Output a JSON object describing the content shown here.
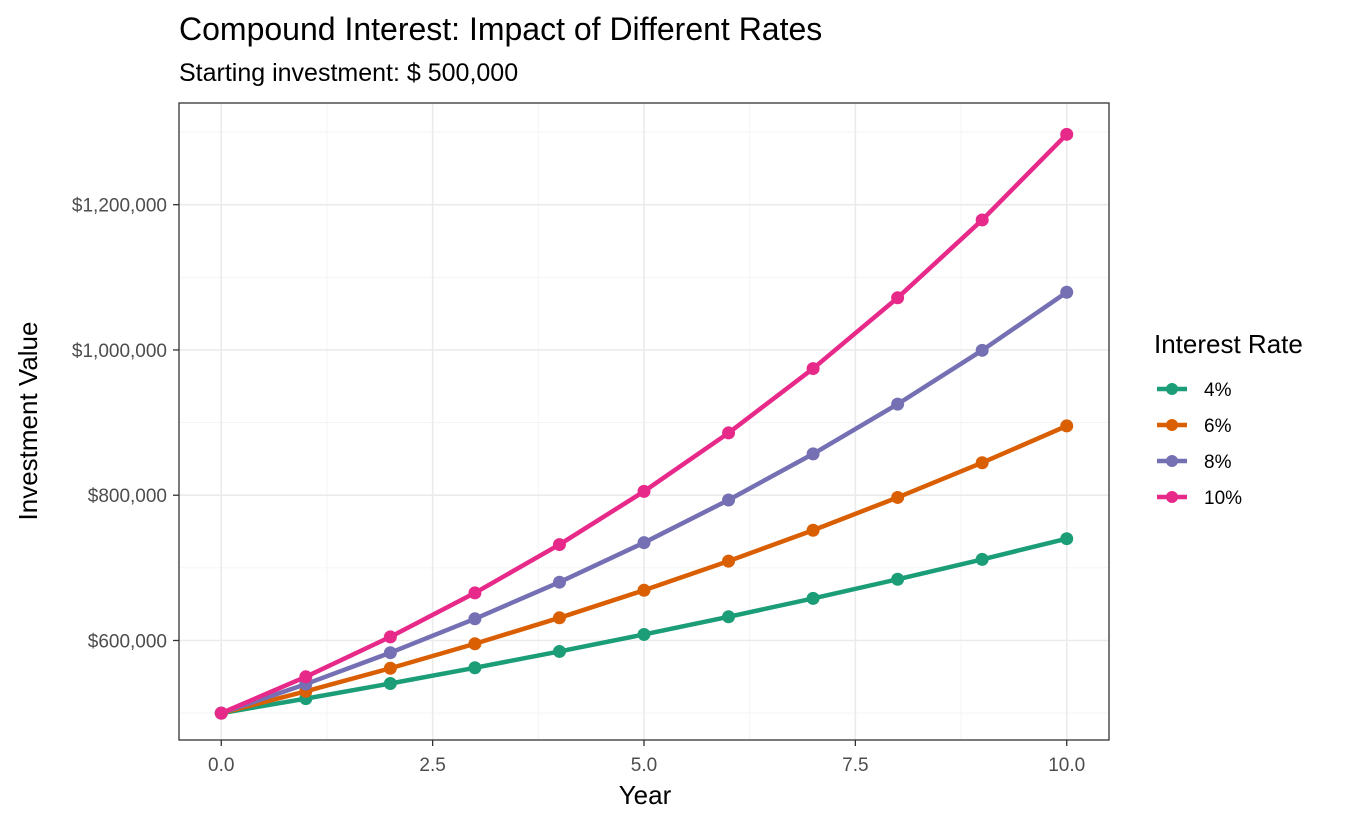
{
  "chart_data": {
    "type": "line",
    "title": "Compound Interest: Impact of Different Rates",
    "subtitle": "Starting investment: $ 500,000",
    "xlabel": "Year",
    "ylabel": "Investment Value",
    "xlim": [
      -0.5,
      10.5
    ],
    "ylim": [
      463000,
      1340000
    ],
    "x_ticks": [
      0,
      2.5,
      5,
      7.5,
      10
    ],
    "x_tick_labels": [
      "0.0",
      "2.5",
      "5.0",
      "7.5",
      "10.0"
    ],
    "y_ticks": [
      600000,
      800000,
      1000000,
      1200000
    ],
    "y_tick_labels": [
      "$600,000",
      "$800,000",
      "$1,000,000",
      "$1,200,000"
    ],
    "grid": true,
    "legend": {
      "title": "Interest Rate",
      "position": "right"
    },
    "x": [
      0,
      1,
      2,
      3,
      4,
      5,
      6,
      7,
      8,
      9,
      10
    ],
    "series": [
      {
        "name": "4%",
        "color": "#1b9e77",
        "values": [
          500000,
          520000,
          540800,
          562432,
          584929,
          608326,
          632660,
          657966,
          684285,
          711656,
          740122
        ]
      },
      {
        "name": "6%",
        "color": "#d95f02",
        "values": [
          500000,
          530000,
          561800,
          595508,
          631238,
          669113,
          709259,
          751815,
          796924,
          844739,
          895424
        ]
      },
      {
        "name": "8%",
        "color": "#7570b3",
        "values": [
          500000,
          540000,
          583200,
          629856,
          680244,
          734664,
          793437,
          856912,
          925465,
          999502,
          1079462
        ]
      },
      {
        "name": "10%",
        "color": "#e7298a",
        "values": [
          500000,
          550000,
          605000,
          665500,
          732050,
          805255,
          885781,
          974359,
          1071794,
          1178974,
          1296871
        ]
      }
    ]
  }
}
